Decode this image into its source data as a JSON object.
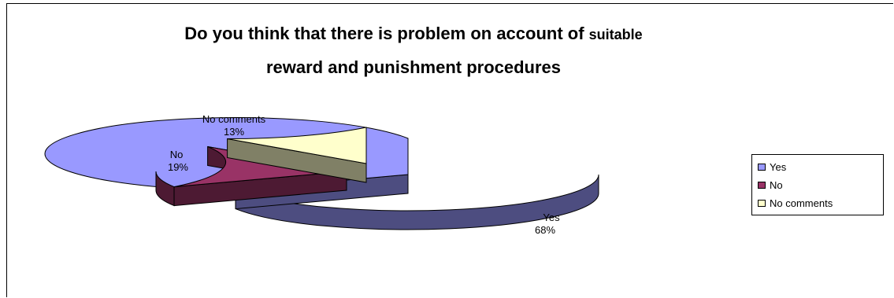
{
  "chart_data": {
    "type": "pie",
    "title": "Do you think that there is problem on account of suitable reward and punishment procedures",
    "title_lines": [
      "Do you think that there is problem on account of ",
      "suitable",
      "reward and punishment procedures"
    ],
    "three_d": true,
    "legend_position": "right",
    "slices": [
      {
        "label": "Yes",
        "value": 68,
        "value_label": "68%",
        "color": "#9999ff",
        "side_color": "#4d4d80"
      },
      {
        "label": "No",
        "value": 19,
        "value_label": "19%",
        "color": "#993366",
        "side_color": "#4d1a33"
      },
      {
        "label": "No comments",
        "value": 13,
        "value_label": "13%",
        "color": "#ffffcc",
        "side_color": "#808066"
      }
    ]
  }
}
